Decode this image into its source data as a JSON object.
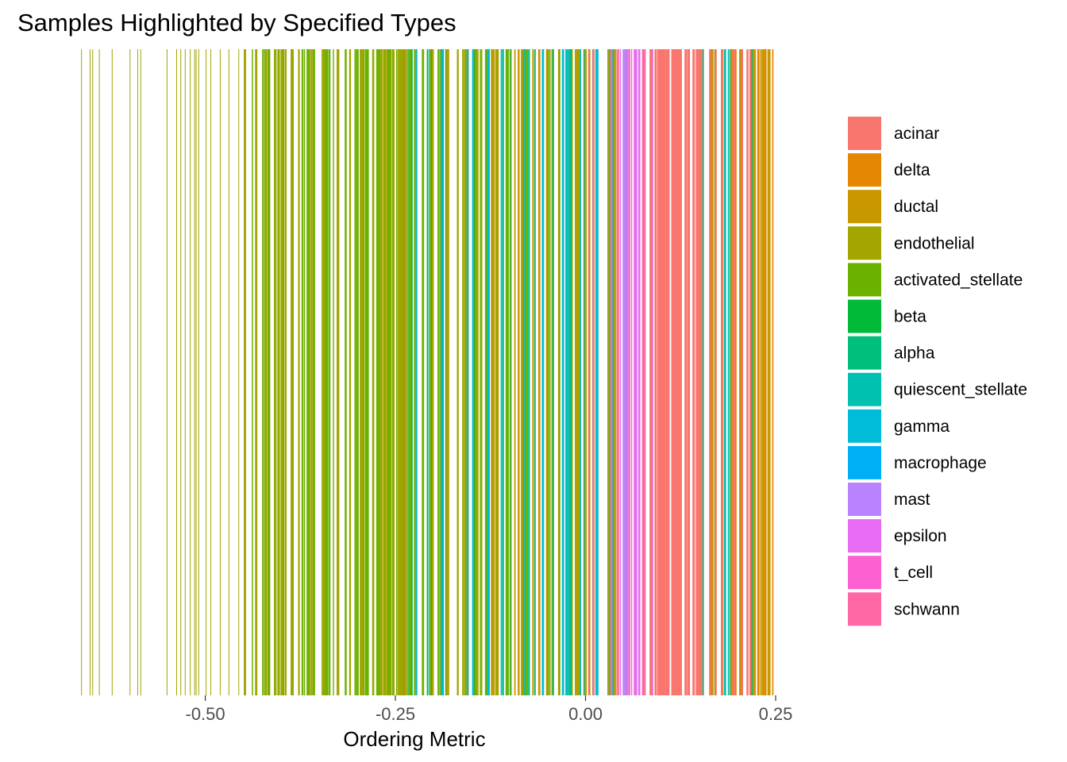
{
  "chart_data": {
    "type": "barcode",
    "title": "Samples Highlighted by Specified Types",
    "xlabel": "Ordering Metric",
    "xlim": [
      -0.7,
      0.25
    ],
    "x_ticks": [
      -0.5,
      -0.25,
      0.0,
      0.25
    ],
    "x_tick_labels": [
      "-0.50",
      "-0.25",
      "0.00",
      "0.25"
    ],
    "grid": false,
    "legend_position": "right",
    "legend": [
      {
        "name": "acinar",
        "color": "#F8766D"
      },
      {
        "name": "delta",
        "color": "#E58700"
      },
      {
        "name": "ductal",
        "color": "#C99800"
      },
      {
        "name": "endothelial",
        "color": "#A3A500"
      },
      {
        "name": "activated_stellate",
        "color": "#6BB100"
      },
      {
        "name": "beta",
        "color": "#00BA38"
      },
      {
        "name": "alpha",
        "color": "#00BF7D"
      },
      {
        "name": "quiescent_stellate",
        "color": "#00C0AF"
      },
      {
        "name": "gamma",
        "color": "#00BCD8"
      },
      {
        "name": "macrophage",
        "color": "#00B0F6"
      },
      {
        "name": "mast",
        "color": "#B983FF"
      },
      {
        "name": "epsilon",
        "color": "#E76BF3"
      },
      {
        "name": "t_cell",
        "color": "#FD61D1"
      },
      {
        "name": "schwann",
        "color": "#FF67A4"
      }
    ],
    "segments": [
      {
        "from": -0.69,
        "to": -0.45,
        "types": [
          "endothelial"
        ]
      },
      {
        "from": -0.45,
        "to": -0.32,
        "types": [
          "endothelial",
          "activated_stellate"
        ]
      },
      {
        "from": -0.32,
        "to": -0.24,
        "types": [
          "activated_stellate",
          "endothelial"
        ]
      },
      {
        "from": -0.24,
        "to": -0.12,
        "types": [
          "beta",
          "activated_stellate",
          "endothelial",
          "ductal",
          "gamma"
        ]
      },
      {
        "from": -0.12,
        "to": 0.0,
        "types": [
          "gamma",
          "endothelial",
          "alpha",
          "activated_stellate",
          "ductal"
        ]
      },
      {
        "from": 0.0,
        "to": 0.04,
        "types": [
          "acinar",
          "gamma",
          "endothelial"
        ]
      },
      {
        "from": 0.04,
        "to": 0.09,
        "types": [
          "acinar",
          "mast",
          "epsilon",
          "schwann"
        ]
      },
      {
        "from": 0.09,
        "to": 0.15,
        "types": [
          "acinar"
        ]
      },
      {
        "from": 0.15,
        "to": 0.22,
        "types": [
          "acinar",
          "quiescent_stellate",
          "alpha",
          "delta"
        ]
      },
      {
        "from": 0.22,
        "to": 0.25,
        "types": [
          "delta",
          "ductal"
        ]
      }
    ]
  }
}
